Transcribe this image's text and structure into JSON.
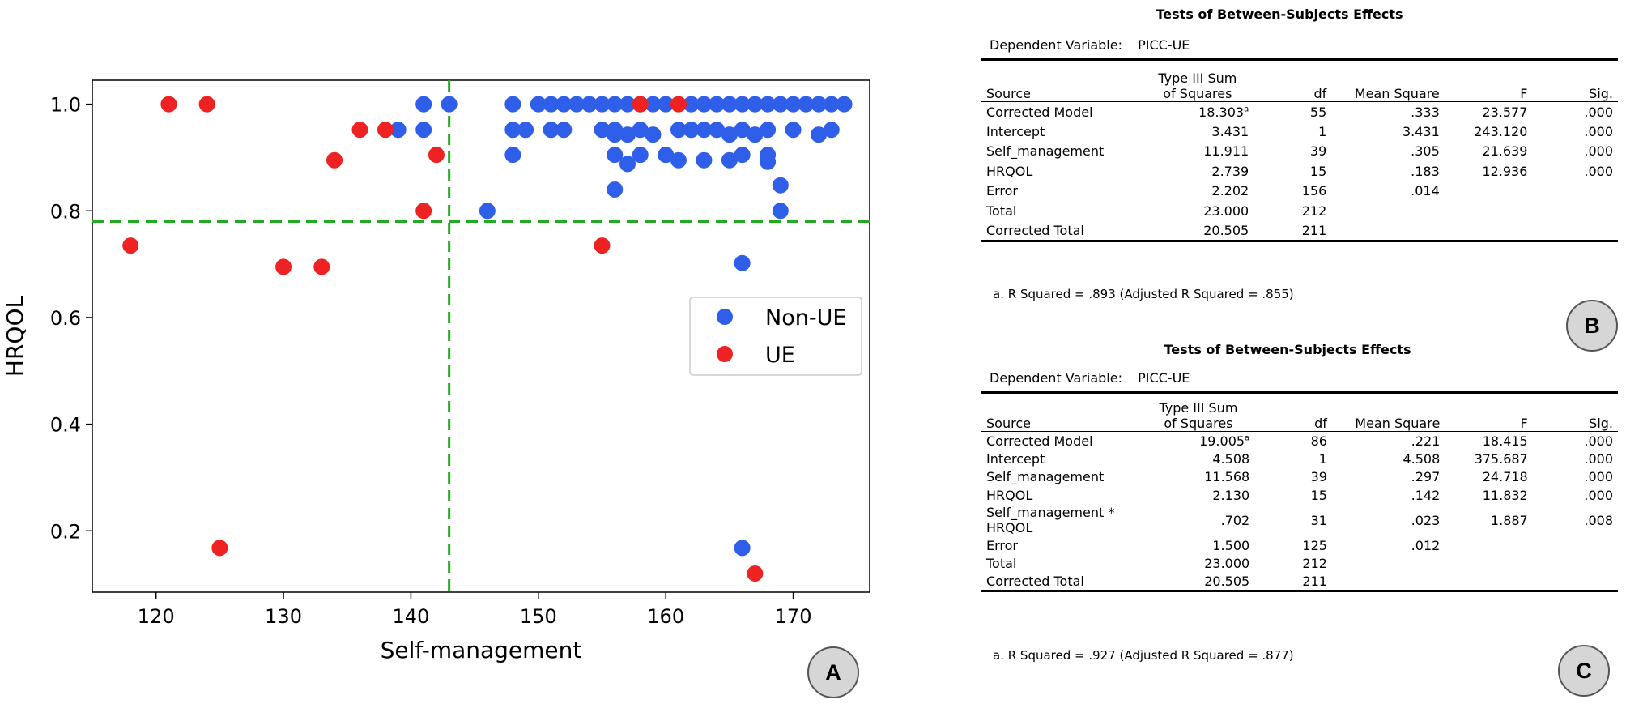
{
  "chart_data": {
    "type": "scatter",
    "xlabel": "Self-management",
    "ylabel": "HRQOL",
    "xlim": [
      115,
      176
    ],
    "ylim": [
      0.085,
      1.045
    ],
    "xticks": [
      120,
      130,
      140,
      150,
      160,
      170
    ],
    "yticks": [
      0.2,
      0.4,
      0.6,
      0.8,
      1.0
    ],
    "ytick_labels": [
      "0.2",
      "0.4",
      "0.6",
      "0.8",
      "1.0"
    ],
    "reference_lines": {
      "x": 143,
      "y": 0.78,
      "color": "#22aa22",
      "style": "dashed"
    },
    "legend": {
      "position": "center-right",
      "entries": [
        "Non-UE",
        "UE"
      ]
    },
    "series": [
      {
        "name": "Non-UE",
        "color": "#2f5ee8",
        "points": [
          [
            141,
            1.0
          ],
          [
            143,
            1.0
          ],
          [
            148,
            1.0
          ],
          [
            150,
            1.0
          ],
          [
            151,
            1.0
          ],
          [
            152,
            1.0
          ],
          [
            153,
            1.0
          ],
          [
            154,
            1.0
          ],
          [
            155,
            1.0
          ],
          [
            156,
            1.0
          ],
          [
            157,
            1.0
          ],
          [
            158,
            1.0
          ],
          [
            159,
            1.0
          ],
          [
            160,
            1.0
          ],
          [
            162,
            1.0
          ],
          [
            163,
            1.0
          ],
          [
            164,
            1.0
          ],
          [
            165,
            1.0
          ],
          [
            166,
            1.0
          ],
          [
            167,
            1.0
          ],
          [
            168,
            1.0
          ],
          [
            169,
            1.0
          ],
          [
            170,
            1.0
          ],
          [
            171,
            1.0
          ],
          [
            172,
            1.0
          ],
          [
            173,
            1.0
          ],
          [
            174,
            1.0
          ],
          [
            139,
            0.952
          ],
          [
            141,
            0.952
          ],
          [
            148,
            0.952
          ],
          [
            149,
            0.952
          ],
          [
            151,
            0.952
          ],
          [
            152,
            0.952
          ],
          [
            155,
            0.952
          ],
          [
            156,
            0.952
          ],
          [
            158,
            0.952
          ],
          [
            161,
            0.952
          ],
          [
            162,
            0.952
          ],
          [
            163,
            0.952
          ],
          [
            164,
            0.952
          ],
          [
            166,
            0.952
          ],
          [
            168,
            0.952
          ],
          [
            170,
            0.952
          ],
          [
            173,
            0.952
          ],
          [
            156,
            0.943
          ],
          [
            157,
            0.943
          ],
          [
            159,
            0.943
          ],
          [
            165,
            0.943
          ],
          [
            167,
            0.943
          ],
          [
            172,
            0.943
          ],
          [
            148,
            0.905
          ],
          [
            156,
            0.905
          ],
          [
            158,
            0.905
          ],
          [
            160,
            0.905
          ],
          [
            166,
            0.905
          ],
          [
            168,
            0.905
          ],
          [
            157,
            0.888
          ],
          [
            161,
            0.895
          ],
          [
            163,
            0.895
          ],
          [
            165,
            0.895
          ],
          [
            168,
            0.892
          ],
          [
            169,
            0.848
          ],
          [
            156,
            0.84
          ],
          [
            146,
            0.8
          ],
          [
            169,
            0.8
          ],
          [
            166,
            0.702
          ],
          [
            166,
            0.168
          ]
        ]
      },
      {
        "name": "UE",
        "color": "#ee2222",
        "points": [
          [
            121,
            1.0
          ],
          [
            124,
            1.0
          ],
          [
            158,
            1.0
          ],
          [
            161,
            1.0
          ],
          [
            136,
            0.952
          ],
          [
            138,
            0.952
          ],
          [
            134,
            0.895
          ],
          [
            142,
            0.905
          ],
          [
            141,
            0.8
          ],
          [
            118,
            0.735
          ],
          [
            155,
            0.735
          ],
          [
            130,
            0.695
          ],
          [
            133,
            0.695
          ],
          [
            125,
            0.168
          ],
          [
            167,
            0.12
          ]
        ]
      }
    ]
  },
  "panel_labels": {
    "a": "A",
    "b": "B",
    "c": "C"
  },
  "table_b": {
    "title": "Tests of Between-Subjects Effects",
    "dep_var_label": "Dependent Variable:",
    "dep_var_value": "PICC-UE",
    "headers": {
      "source": "Source",
      "ss_line1": "Type III Sum",
      "ss_line2": "of Squares",
      "df": "df",
      "ms": "Mean Square",
      "f": "F",
      "sig": "Sig."
    },
    "rows": [
      {
        "source": "Corrected Model",
        "ss": "18.303",
        "sup": "a",
        "df": "55",
        "ms": ".333",
        "f": "23.577",
        "sig": ".000"
      },
      {
        "source": "Intercept",
        "ss": "3.431",
        "sup": "",
        "df": "1",
        "ms": "3.431",
        "f": "243.120",
        "sig": ".000"
      },
      {
        "source": "Self_management",
        "ss": "11.911",
        "sup": "",
        "df": "39",
        "ms": ".305",
        "f": "21.639",
        "sig": ".000"
      },
      {
        "source": "HRQOL",
        "ss": "2.739",
        "sup": "",
        "df": "15",
        "ms": ".183",
        "f": "12.936",
        "sig": ".000"
      },
      {
        "source": "Error",
        "ss": "2.202",
        "sup": "",
        "df": "156",
        "ms": ".014",
        "f": "",
        "sig": ""
      },
      {
        "source": "Total",
        "ss": "23.000",
        "sup": "",
        "df": "212",
        "ms": "",
        "f": "",
        "sig": ""
      },
      {
        "source": "Corrected Total",
        "ss": "20.505",
        "sup": "",
        "df": "211",
        "ms": "",
        "f": "",
        "sig": ""
      }
    ],
    "footnote": "a. R Squared = .893 (Adjusted R Squared = .855)"
  },
  "table_c": {
    "title": "Tests of Between-Subjects Effects",
    "dep_var_label": "Dependent Variable:",
    "dep_var_value": "PICC-UE",
    "headers": {
      "source": "Source",
      "ss_line1": "Type III Sum",
      "ss_line2": "of Squares",
      "df": "df",
      "ms": "Mean Square",
      "f": "F",
      "sig": "Sig."
    },
    "rows": [
      {
        "source": "Corrected Model",
        "source2": "",
        "ss": "19.005",
        "sup": "a",
        "df": "86",
        "ms": ".221",
        "f": "18.415",
        "sig": ".000"
      },
      {
        "source": "Intercept",
        "source2": "",
        "ss": "4.508",
        "sup": "",
        "df": "1",
        "ms": "4.508",
        "f": "375.687",
        "sig": ".000"
      },
      {
        "source": "Self_management",
        "source2": "",
        "ss": "11.568",
        "sup": "",
        "df": "39",
        "ms": ".297",
        "f": "24.718",
        "sig": ".000"
      },
      {
        "source": "HRQOL",
        "source2": "",
        "ss": "2.130",
        "sup": "",
        "df": "15",
        "ms": ".142",
        "f": "11.832",
        "sig": ".000"
      },
      {
        "source": "Self_management *",
        "source2": "HRQOL",
        "ss": ".702",
        "sup": "",
        "df": "31",
        "ms": ".023",
        "f": "1.887",
        "sig": ".008"
      },
      {
        "source": "Error",
        "source2": "",
        "ss": "1.500",
        "sup": "",
        "df": "125",
        "ms": ".012",
        "f": "",
        "sig": ""
      },
      {
        "source": "Total",
        "source2": "",
        "ss": "23.000",
        "sup": "",
        "df": "212",
        "ms": "",
        "f": "",
        "sig": ""
      },
      {
        "source": "Corrected Total",
        "source2": "",
        "ss": "20.505",
        "sup": "",
        "df": "211",
        "ms": "",
        "f": "",
        "sig": ""
      }
    ],
    "footnote": "a. R Squared = .927 (Adjusted R Squared = .877)"
  }
}
